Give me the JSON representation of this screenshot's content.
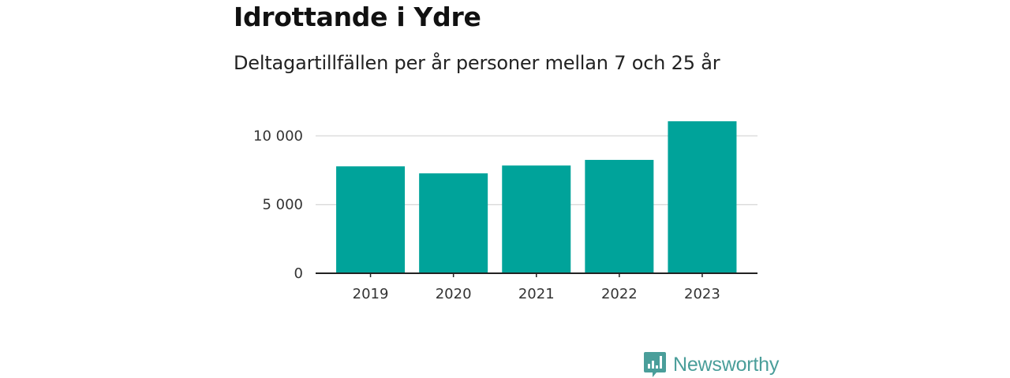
{
  "title": "Idrottande i Ydre",
  "subtitle": "Deltagartillfällen per år personer mellan 7 och 25 år",
  "brand": {
    "name": "Newsworthy",
    "color": "#4a9e9a",
    "icon": "newsworthy-logo-icon"
  },
  "colors": {
    "bar": "#00a39a",
    "grid": "#dddddd",
    "axis": "#222222"
  },
  "chart_data": {
    "type": "bar",
    "title": "Idrottande i Ydre",
    "subtitle": "Deltagartillfällen per år personer mellan 7 och 25 år",
    "categories": [
      "2019",
      "2020",
      "2021",
      "2022",
      "2023"
    ],
    "values": [
      7780,
      7270,
      7840,
      8250,
      11060
    ],
    "ylim": [
      0,
      11060
    ],
    "yticks": [
      0,
      5000,
      10000
    ],
    "ytick_labels": [
      "0",
      "5 000",
      "10 000"
    ],
    "xlabel": "",
    "ylabel": "",
    "grid": true,
    "legend": "none"
  }
}
